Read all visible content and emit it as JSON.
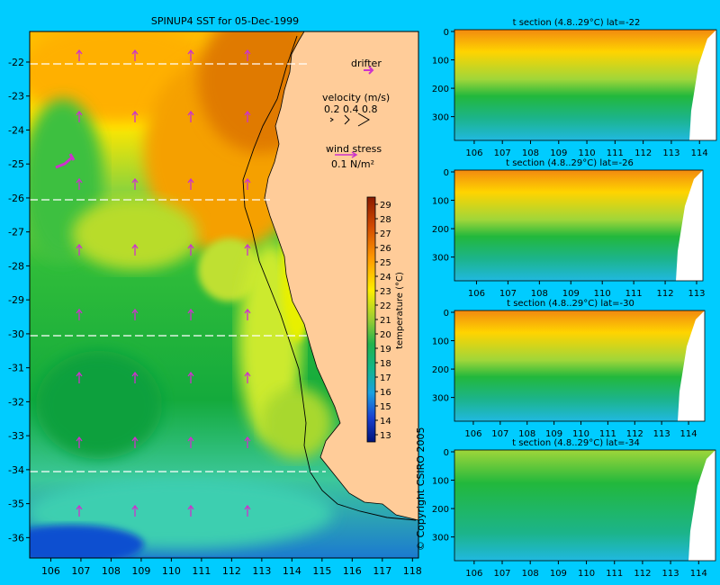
{
  "main_map": {
    "title": "SPINUP4 SST for 05-Dec-1999",
    "y_ticks": [
      "-22",
      "-23",
      "-24",
      "-25",
      "-26",
      "-27",
      "-28",
      "-29",
      "-30",
      "-31",
      "-32",
      "-33",
      "-34",
      "-35",
      "-36"
    ],
    "x_ticks": [
      "106",
      "107",
      "108",
      "109",
      "110",
      "111",
      "112",
      "113",
      "114",
      "115",
      "116",
      "117",
      "118"
    ],
    "legend": {
      "drifter_label": "drifter",
      "velocity_label": "velocity (m/s)",
      "velocity_scale": "0.2 0.4 0.8",
      "wind_label": "wind stress",
      "wind_scale": "0.1 N/m²"
    },
    "colorbar": {
      "label": "temperature (°C)",
      "ticks": [
        "29",
        "28",
        "27",
        "26",
        "25",
        "24",
        "23",
        "22",
        "21",
        "20",
        "19",
        "18",
        "17",
        "16",
        "15",
        "14",
        "13"
      ]
    },
    "copyright": "© Copyright CSIRO 2005",
    "colors": {
      "background": "#00ccff",
      "land": "#ffcc99",
      "arrows": "#cc33cc"
    }
  },
  "chart_data": [
    {
      "type": "heatmap",
      "title": "SPINUP4 SST for 05-Dec-1999",
      "xlabel": "",
      "ylabel": "",
      "xlim": [
        105.3,
        118.2
      ],
      "ylim": [
        -36.6,
        -21.1
      ],
      "x_ticks": [
        106,
        107,
        108,
        109,
        110,
        111,
        112,
        113,
        114,
        115,
        116,
        117,
        118
      ],
      "y_ticks": [
        -22,
        -23,
        -24,
        -25,
        -26,
        -27,
        -28,
        -29,
        -30,
        -31,
        -32,
        -33,
        -34,
        -35,
        -36
      ],
      "section_latitudes": [
        -22,
        -26,
        -30,
        -34
      ],
      "colorbar": {
        "label": "temperature (°C)",
        "range": [
          13,
          29
        ]
      }
    },
    {
      "type": "heatmap",
      "title": "t section (4.8..29°C) lat=-22",
      "x_ticks": [
        "106",
        "107",
        "108",
        "109",
        "110",
        "111",
        "112",
        "113",
        "114"
      ],
      "y_ticks": [
        "0",
        "100",
        "200",
        "300"
      ],
      "xlim": [
        105.3,
        114.6
      ],
      "ylim": [
        390,
        0
      ]
    },
    {
      "type": "heatmap",
      "title": "t section (4.8..29°C) lat=-26",
      "x_ticks": [
        "106",
        "107",
        "108",
        "109",
        "110",
        "111",
        "112",
        "113"
      ],
      "y_ticks": [
        "0",
        "100",
        "200",
        "300"
      ],
      "xlim": [
        105.3,
        113.2
      ],
      "ylim": [
        390,
        0
      ]
    },
    {
      "type": "heatmap",
      "title": "t section (4.8..29°C) lat=-30",
      "x_ticks": [
        "106",
        "107",
        "108",
        "109",
        "110",
        "111",
        "112",
        "113",
        "114"
      ],
      "y_ticks": [
        "0",
        "100",
        "200",
        "300"
      ],
      "xlim": [
        105.3,
        114.6
      ],
      "ylim": [
        390,
        0
      ]
    },
    {
      "type": "heatmap",
      "title": "t section (4.8..29°C) lat=-34",
      "x_ticks": [
        "106",
        "107",
        "108",
        "109",
        "110",
        "111",
        "112",
        "113",
        "114"
      ],
      "y_ticks": [
        "0",
        "100",
        "200",
        "300"
      ],
      "xlim": [
        105.3,
        114.6
      ],
      "ylim": [
        390,
        0
      ]
    }
  ]
}
